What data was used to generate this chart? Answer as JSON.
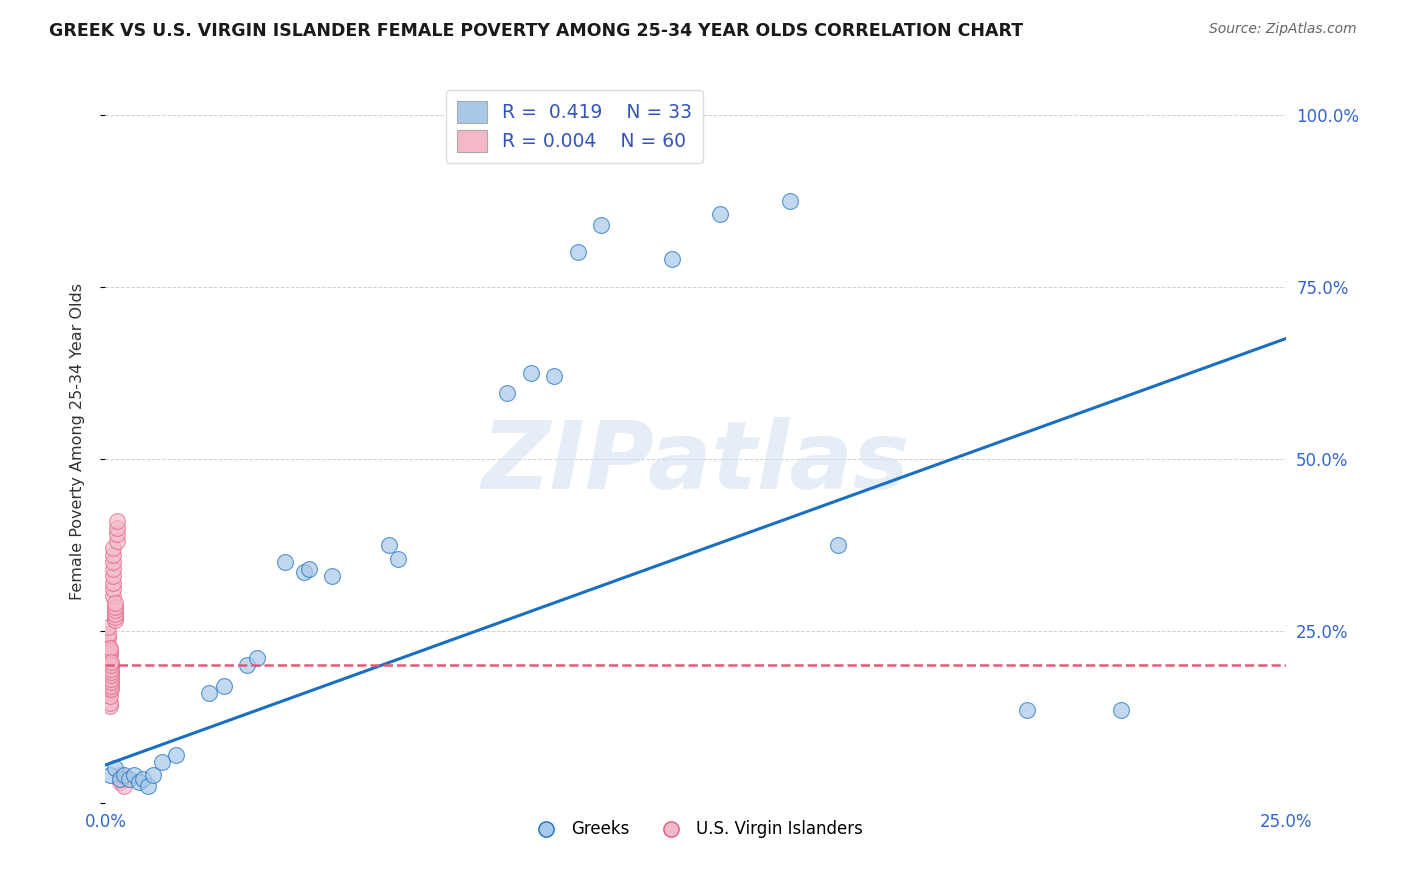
{
  "title": "GREEK VS U.S. VIRGIN ISLANDER FEMALE POVERTY AMONG 25-34 YEAR OLDS CORRELATION CHART",
  "source": "Source: ZipAtlas.com",
  "ylabel": "Female Poverty Among 25-34 Year Olds",
  "xlim": [
    0.0,
    0.25
  ],
  "ylim": [
    0.0,
    1.05
  ],
  "legend_blue_r": "0.419",
  "legend_blue_n": "33",
  "legend_pink_r": "0.004",
  "legend_pink_n": "60",
  "blue_color": "#a8c8e8",
  "pink_color": "#f4b8c8",
  "blue_line_color": "#1a6fc4",
  "pink_line_color": "#e05c7a",
  "grid_color": "#cccccc",
  "background_color": "#ffffff",
  "watermark": "ZIPatlas",
  "greeks_x": [
    0.001,
    0.002,
    0.003,
    0.004,
    0.005,
    0.006,
    0.007,
    0.008,
    0.009,
    0.01,
    0.012,
    0.015,
    0.022,
    0.025,
    0.03,
    0.032,
    0.038,
    0.042,
    0.043,
    0.048,
    0.06,
    0.062,
    0.085,
    0.09,
    0.095,
    0.1,
    0.105,
    0.12,
    0.13,
    0.145,
    0.155,
    0.195,
    0.215
  ],
  "greeks_y": [
    0.04,
    0.05,
    0.035,
    0.04,
    0.035,
    0.04,
    0.03,
    0.035,
    0.025,
    0.04,
    0.06,
    0.07,
    0.16,
    0.17,
    0.2,
    0.21,
    0.35,
    0.335,
    0.34,
    0.33,
    0.375,
    0.355,
    0.595,
    0.625,
    0.62,
    0.8,
    0.84,
    0.79,
    0.855,
    0.875,
    0.375,
    0.135,
    0.135
  ],
  "usvi_x": [
    0.0005,
    0.0005,
    0.0005,
    0.0005,
    0.0005,
    0.0005,
    0.0005,
    0.0005,
    0.0005,
    0.0005,
    0.0008,
    0.0008,
    0.0008,
    0.0008,
    0.0008,
    0.0008,
    0.0008,
    0.0008,
    0.0008,
    0.0008,
    0.001,
    0.001,
    0.001,
    0.001,
    0.001,
    0.001,
    0.001,
    0.001,
    0.001,
    0.001,
    0.0012,
    0.0012,
    0.0012,
    0.0012,
    0.0012,
    0.0012,
    0.0012,
    0.0012,
    0.0012,
    0.0015,
    0.0015,
    0.0015,
    0.0015,
    0.0015,
    0.0015,
    0.0015,
    0.0015,
    0.002,
    0.002,
    0.002,
    0.002,
    0.002,
    0.002,
    0.0025,
    0.0025,
    0.0025,
    0.0025,
    0.003,
    0.003,
    0.004
  ],
  "usvi_y": [
    0.195,
    0.205,
    0.21,
    0.215,
    0.22,
    0.225,
    0.23,
    0.24,
    0.245,
    0.255,
    0.16,
    0.165,
    0.17,
    0.175,
    0.18,
    0.185,
    0.19,
    0.195,
    0.2,
    0.21,
    0.14,
    0.145,
    0.155,
    0.185,
    0.195,
    0.2,
    0.205,
    0.215,
    0.22,
    0.225,
    0.165,
    0.17,
    0.175,
    0.18,
    0.185,
    0.19,
    0.195,
    0.2,
    0.205,
    0.3,
    0.31,
    0.32,
    0.33,
    0.34,
    0.35,
    0.36,
    0.37,
    0.265,
    0.27,
    0.275,
    0.28,
    0.285,
    0.29,
    0.38,
    0.39,
    0.4,
    0.41,
    0.04,
    0.03,
    0.025
  ],
  "blue_trendline_x": [
    0.0,
    0.25
  ],
  "blue_trendline_y": [
    0.055,
    0.675
  ],
  "pink_trendline_x": [
    0.0,
    0.25
  ],
  "pink_trendline_y": [
    0.2,
    0.2
  ]
}
